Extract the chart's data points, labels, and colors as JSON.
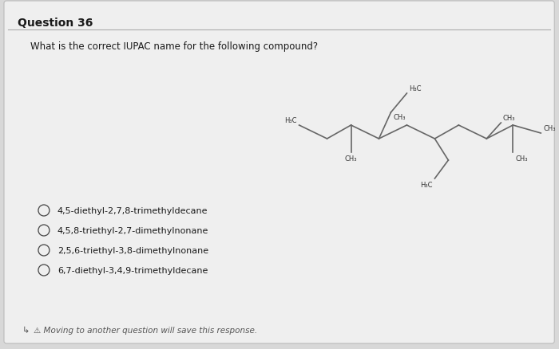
{
  "title": "Question 36",
  "question_text": "What is the correct IUPAC name for the following compound?",
  "options": [
    "4,5-diethyl-2,7,8-trimethyldecane",
    "4,5,8-triethyl-2,7-dimethylnonane",
    "2,5,6-triethyl-3,8-dimethylnonane",
    "6,7-diethyl-3,4,9-trimethyldecane"
  ],
  "footer": "↳ ⚠ Moving to another question will save this response.",
  "bg_color": "#d8d8d8",
  "card_color": "#efefef",
  "text_color": "#1a1a1a",
  "option_circle_color": "#444444",
  "title_underline_color": "#aaaaaa",
  "structure_color": "#666666",
  "mol_label_color": "#333333"
}
